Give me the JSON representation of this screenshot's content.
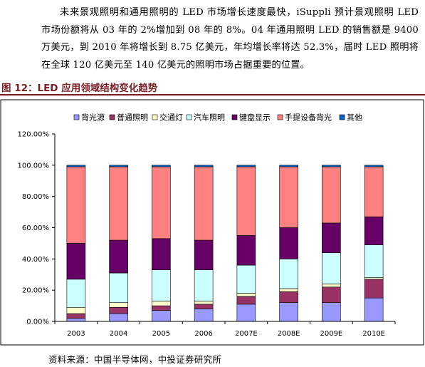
{
  "paragraph": "未来景观照明和通用照明的 LED 市场增长速度最快，iSuppli 预计景观照明 LED 市场份额将从 03 年的 2%增加到 08 年的 8%。04 年通用照明 LED 的销售额是 9400 万美元，到 2010 年将增长到 8.75 亿美元，年均增长率将达 52.3%，届时 LED 照明将在全球 120 亿美元至 140 亿美元的照明市场占据重要的位置。",
  "figure_title": "图 12：LED 应用领域结构变化趋势",
  "source": "资料来源：中国半导体网，中投证券研究所",
  "chart_data": {
    "type": "bar",
    "stacked": true,
    "categories": [
      "2003",
      "2004",
      "2005",
      "2006",
      "2007E",
      "2008E",
      "2009E",
      "2010E"
    ],
    "ylim": [
      0,
      120
    ],
    "yticks": [
      "0.00%",
      "20.00%",
      "40.00%",
      "60.00%",
      "80.00%",
      "100.00%",
      "120.00%"
    ],
    "legend_position": "top",
    "grid": false,
    "series": [
      {
        "name": "背光源",
        "color": "#9999ff",
        "values": [
          2,
          5,
          7,
          8,
          11,
          12,
          12,
          15
        ]
      },
      {
        "name": "普通照明",
        "color": "#993366",
        "values": [
          3,
          4,
          3,
          3,
          5,
          7,
          10,
          12
        ]
      },
      {
        "name": "交通灯",
        "color": "#ffffcc",
        "values": [
          4,
          3,
          3,
          2,
          2,
          2,
          2,
          1
        ]
      },
      {
        "name": "汽车照明",
        "color": "#ccffff",
        "values": [
          18,
          19,
          20,
          20,
          18,
          19,
          20,
          21
        ]
      },
      {
        "name": "键盘显示",
        "color": "#660066",
        "values": [
          23,
          21,
          20,
          19,
          19,
          20,
          19,
          18
        ]
      },
      {
        "name": "手提设备背光",
        "color": "#ff8080",
        "values": [
          49,
          47,
          46,
          47,
          44,
          39,
          36,
          32
        ]
      },
      {
        "name": "其他",
        "color": "#0066cc",
        "values": [
          1,
          1,
          1,
          1,
          1,
          1,
          1,
          1
        ]
      }
    ]
  }
}
